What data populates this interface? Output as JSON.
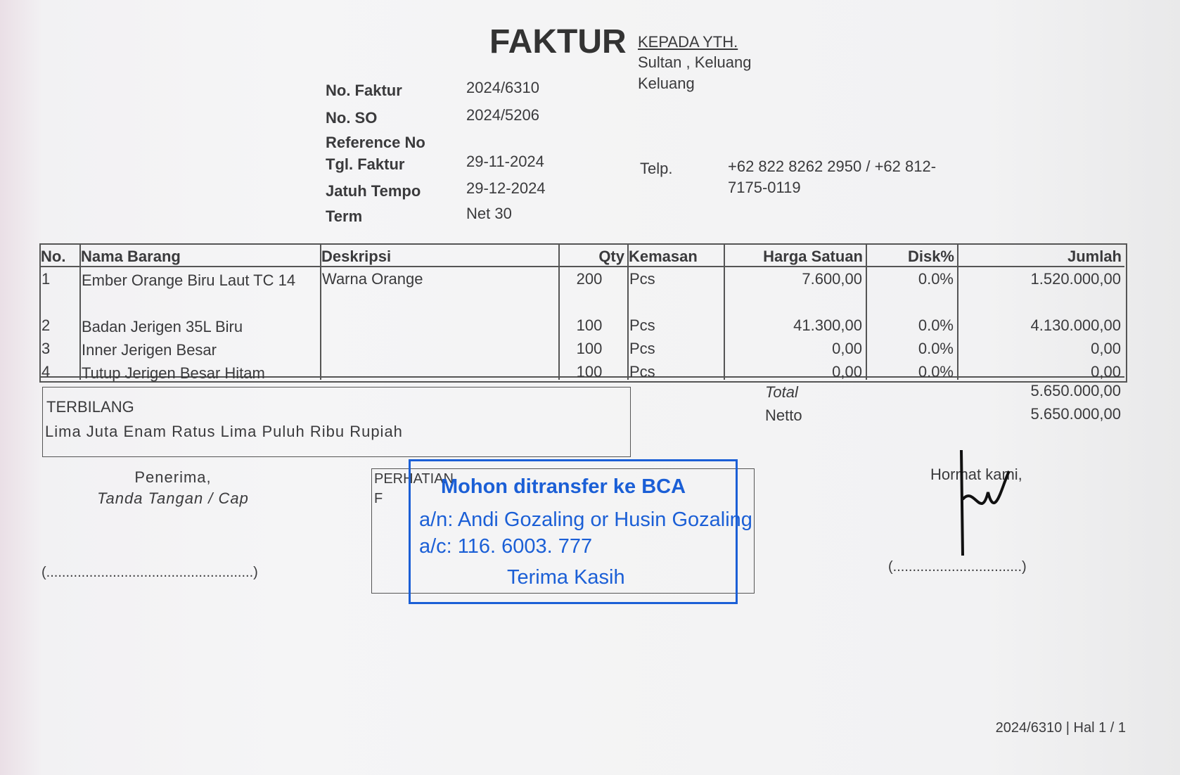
{
  "header": {
    "title": "FAKTUR"
  },
  "recipient": {
    "label": "KEPADA YTH.",
    "lines": [
      "Sultan , Keluang",
      "Keluang"
    ]
  },
  "info": [
    {
      "label": "No. Faktur",
      "value": "2024/6310"
    },
    {
      "label": "No. SO",
      "value": "2024/5206"
    },
    {
      "label": "Reference No"
    },
    {
      "label": "Tgl. Faktur",
      "value": "29-11-2024"
    },
    {
      "label": "Jatuh Tempo",
      "value": "29-12-2024"
    },
    {
      "label": "Term",
      "value": "Net 30"
    }
  ],
  "telp": {
    "label": "Telp.",
    "value": "+62 822 8262 2950 / +62 812-7175-0119"
  },
  "table": {
    "headers": [
      "No.",
      "Nama Barang",
      "Deskripsi",
      "Qty",
      "Kemasan",
      "Harga Satuan",
      "Disk%",
      "Jumlah"
    ],
    "rows": [
      {
        "no": "1",
        "nama": "Ember Orange Biru Laut  TC 14",
        "deskripsi": "Warna Orange",
        "qty": "200",
        "kemasan": "Pcs",
        "harga": "7.600,00",
        "disk": "0.0%",
        "jumlah": "1.520.000,00"
      },
      {
        "no": "2",
        "nama": "Badan Jerigen 35L Biru",
        "qty": "100",
        "kemasan": "Pcs",
        "harga": "41.300,00",
        "disk": "0.0%",
        "jumlah": "4.130.000,00"
      },
      {
        "no": "3",
        "nama": "Inner Jerigen Besar",
        "qty": "100",
        "kemasan": "Pcs",
        "harga": "0,00",
        "disk": "0.0%",
        "jumlah": "0,00"
      },
      {
        "no": "4",
        "nama": "Tutup Jerigen Besar Hitam",
        "qty": "100",
        "kemasan": "Pcs",
        "harga": "0,00",
        "disk": "0.0%",
        "jumlah": "0,00"
      }
    ]
  },
  "totals": [
    {
      "label": "Total",
      "value": "5.650.000,00"
    },
    {
      "label": "Netto",
      "value": "5.650.000,00"
    }
  ],
  "terbilang": {
    "label": "TERBILANG",
    "text": "Lima Juta Enam Ratus Lima Puluh Ribu Rupiah"
  },
  "penerima": {
    "lines": [
      "Penerima,",
      "Tanda Tangan / Cap"
    ],
    "signature": "(.....................................................)"
  },
  "perhatian": {
    "label": "PERHATIAN",
    "note": "F"
  },
  "stamp": {
    "lines": [
      "Mohon ditransfer ke BCA",
      "a/n: Andi Gozaling or Husin Gozaling",
      "a/c: 116. 6003. 777",
      "Terima Kasih"
    ]
  },
  "hormat": {
    "label": "Hormat kami,",
    "signature": "(.................................)"
  },
  "footer": "2024/6310 | Hal 1 / 1"
}
